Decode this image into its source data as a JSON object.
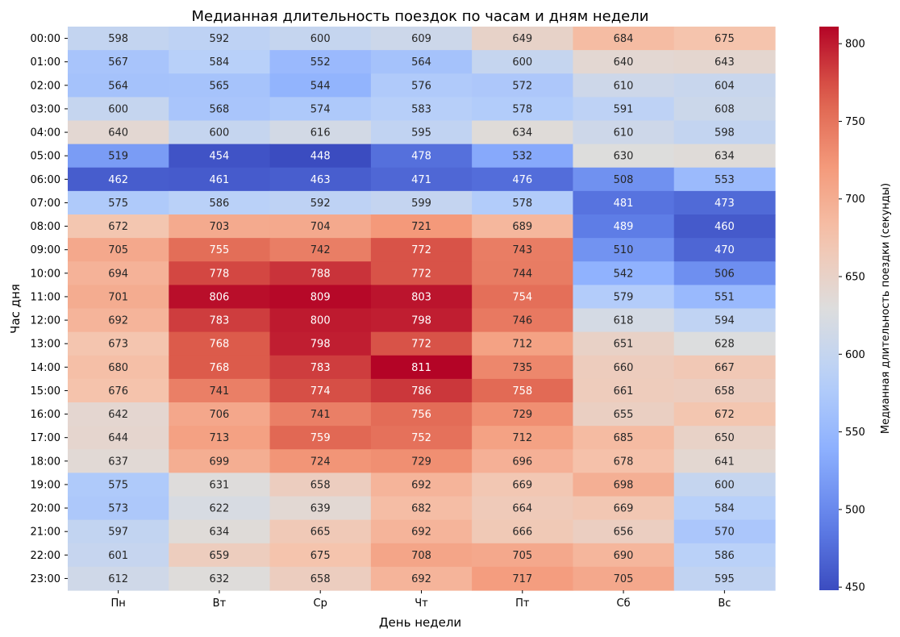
{
  "chart_data": {
    "type": "heatmap",
    "title": "Медианная длительность поездок по часам и дням недели",
    "xlabel": "День недели",
    "ylabel": "Час дня",
    "x_categories": [
      "Пн",
      "Вт",
      "Ср",
      "Чт",
      "Пт",
      "Сб",
      "Вс"
    ],
    "y_categories": [
      "00:00",
      "01:00",
      "02:00",
      "03:00",
      "04:00",
      "05:00",
      "06:00",
      "07:00",
      "08:00",
      "09:00",
      "10:00",
      "11:00",
      "12:00",
      "13:00",
      "14:00",
      "15:00",
      "16:00",
      "17:00",
      "18:00",
      "19:00",
      "20:00",
      "21:00",
      "22:00",
      "23:00"
    ],
    "values": [
      [
        598,
        592,
        600,
        609,
        649,
        684,
        675
      ],
      [
        567,
        584,
        552,
        564,
        600,
        640,
        643
      ],
      [
        564,
        565,
        544,
        576,
        572,
        610,
        604
      ],
      [
        600,
        568,
        574,
        583,
        578,
        591,
        608
      ],
      [
        640,
        600,
        616,
        595,
        634,
        610,
        598
      ],
      [
        519,
        454,
        448,
        478,
        532,
        630,
        634
      ],
      [
        462,
        461,
        463,
        471,
        476,
        508,
        553
      ],
      [
        575,
        586,
        592,
        599,
        578,
        481,
        473
      ],
      [
        672,
        703,
        704,
        721,
        689,
        489,
        460
      ],
      [
        705,
        755,
        742,
        772,
        743,
        510,
        470
      ],
      [
        694,
        778,
        788,
        772,
        744,
        542,
        506
      ],
      [
        701,
        806,
        809,
        803,
        754,
        579,
        551
      ],
      [
        692,
        783,
        800,
        798,
        746,
        618,
        594
      ],
      [
        673,
        768,
        798,
        772,
        712,
        651,
        628
      ],
      [
        680,
        768,
        783,
        811,
        735,
        660,
        667
      ],
      [
        676,
        741,
        774,
        786,
        758,
        661,
        658
      ],
      [
        642,
        706,
        741,
        756,
        729,
        655,
        672
      ],
      [
        644,
        713,
        759,
        752,
        712,
        685,
        650
      ],
      [
        637,
        699,
        724,
        729,
        696,
        678,
        641
      ],
      [
        575,
        631,
        658,
        692,
        669,
        698,
        600
      ],
      [
        573,
        622,
        639,
        682,
        664,
        669,
        584
      ],
      [
        597,
        634,
        665,
        692,
        666,
        656,
        570
      ],
      [
        601,
        659,
        675,
        708,
        705,
        690,
        586
      ],
      [
        612,
        632,
        658,
        692,
        717,
        705,
        595
      ]
    ],
    "colormap": "coolwarm",
    "vmin": 448,
    "vmax": 811,
    "colorbar": {
      "label": "Медианная длительность поездки (секунды)",
      "ticks": [
        450,
        500,
        550,
        600,
        650,
        700,
        750,
        800
      ]
    },
    "cell_labels": true,
    "grid": false,
    "legend": "none"
  }
}
